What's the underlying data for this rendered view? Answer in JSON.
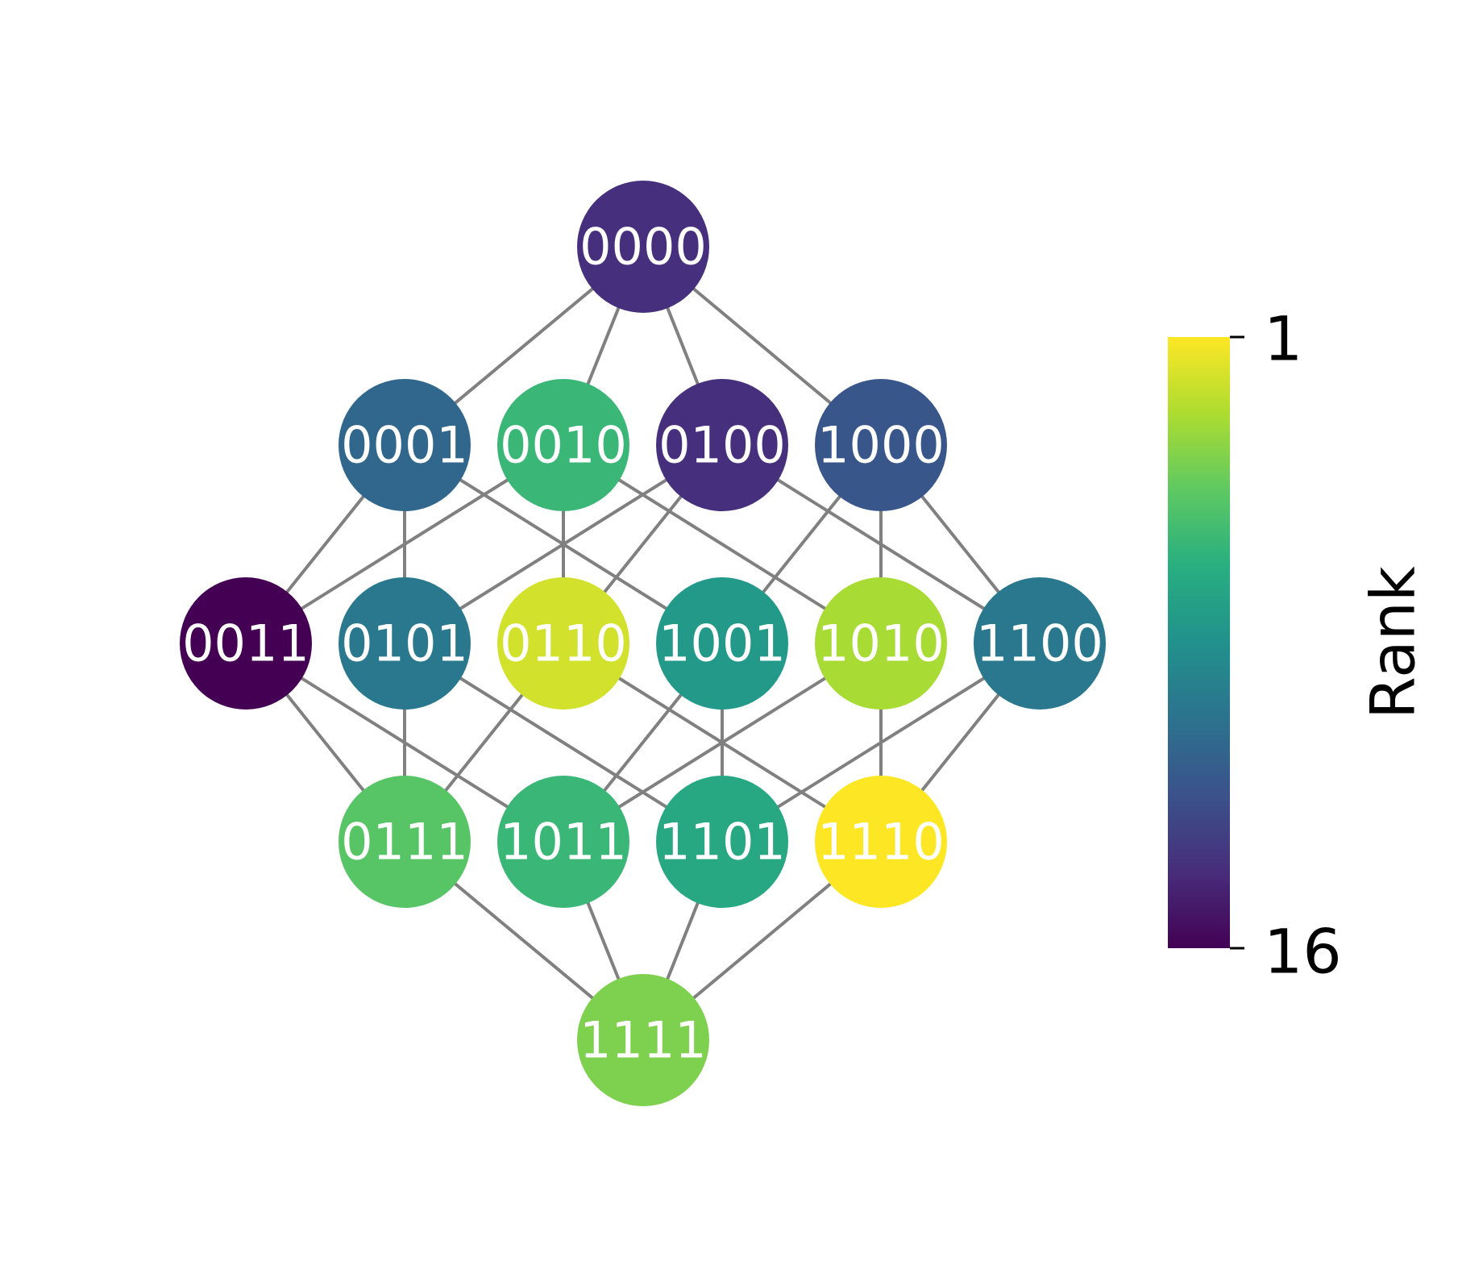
{
  "diagram": {
    "type": "hypercube-lattice",
    "nodes": [
      {
        "id": "0000",
        "rank": 14
      },
      {
        "id": "0001",
        "rank": 11
      },
      {
        "id": "0010",
        "rank": 6
      },
      {
        "id": "0100",
        "rank": 14
      },
      {
        "id": "1000",
        "rank": 12
      },
      {
        "id": "0011",
        "rank": 16
      },
      {
        "id": "0101",
        "rank": 10
      },
      {
        "id": "0110",
        "rank": 2
      },
      {
        "id": "1001",
        "rank": 8
      },
      {
        "id": "1010",
        "rank": 3
      },
      {
        "id": "1100",
        "rank": 10
      },
      {
        "id": "0111",
        "rank": 5
      },
      {
        "id": "1011",
        "rank": 6
      },
      {
        "id": "1101",
        "rank": 7
      },
      {
        "id": "1110",
        "rank": 1
      },
      {
        "id": "1111",
        "rank": 4
      }
    ],
    "edges": [
      [
        "0000",
        "0001"
      ],
      [
        "0000",
        "0010"
      ],
      [
        "0000",
        "0100"
      ],
      [
        "0000",
        "1000"
      ],
      [
        "0001",
        "0011"
      ],
      [
        "0001",
        "0101"
      ],
      [
        "0001",
        "1001"
      ],
      [
        "0010",
        "0011"
      ],
      [
        "0010",
        "0110"
      ],
      [
        "0010",
        "1010"
      ],
      [
        "0100",
        "0101"
      ],
      [
        "0100",
        "0110"
      ],
      [
        "0100",
        "1100"
      ],
      [
        "1000",
        "1001"
      ],
      [
        "1000",
        "1010"
      ],
      [
        "1000",
        "1100"
      ],
      [
        "0011",
        "0111"
      ],
      [
        "0011",
        "1011"
      ],
      [
        "0101",
        "0111"
      ],
      [
        "0101",
        "1101"
      ],
      [
        "0110",
        "0111"
      ],
      [
        "0110",
        "1110"
      ],
      [
        "1001",
        "1011"
      ],
      [
        "1001",
        "1101"
      ],
      [
        "1010",
        "1011"
      ],
      [
        "1010",
        "1110"
      ],
      [
        "1100",
        "1101"
      ],
      [
        "1100",
        "1110"
      ],
      [
        "0111",
        "1111"
      ],
      [
        "1011",
        "1111"
      ],
      [
        "1101",
        "1111"
      ],
      [
        "1110",
        "1111"
      ]
    ],
    "edge_color": "#808080",
    "label_color": "#ffffff"
  },
  "colorbar": {
    "label": "Rank",
    "colormap": "viridis",
    "min_label": "1",
    "max_label": "16",
    "min": 1,
    "max": 16,
    "orientation": "vertical",
    "high_at": "bottom"
  }
}
